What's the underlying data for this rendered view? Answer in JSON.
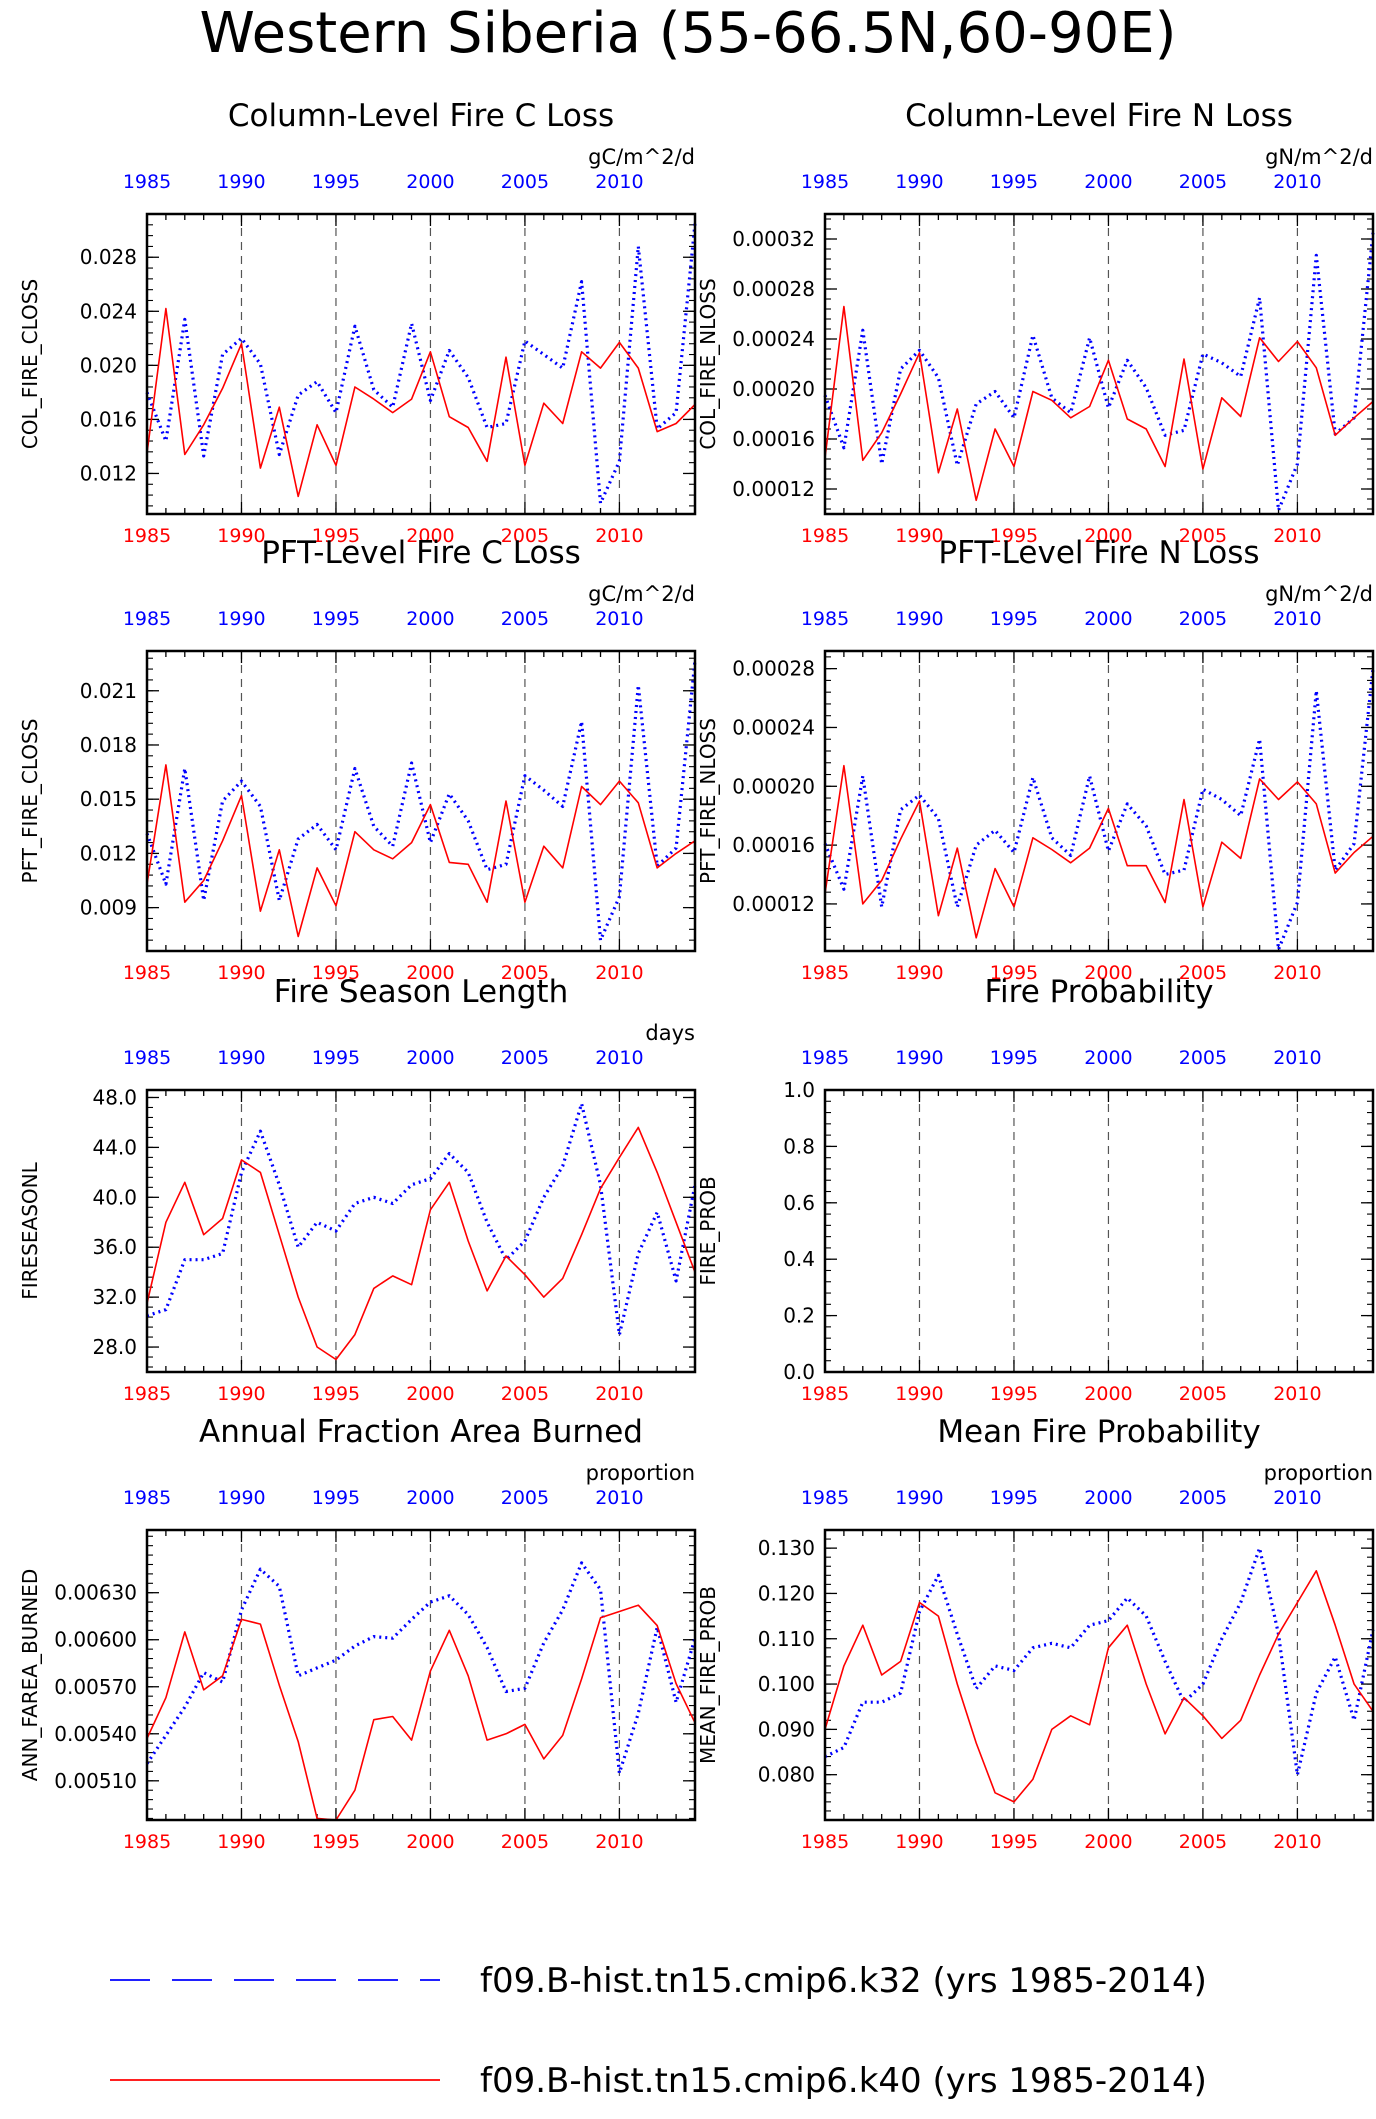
{
  "figure_title": "Western Siberia (55-66.5N,60-90E)",
  "colors": {
    "series_k32": "#0000ff",
    "series_k40": "#ff0000",
    "axis": "#000000",
    "gridline": "#555555"
  },
  "legend": {
    "entries": [
      {
        "label": "f09.B-hist.tn15.cmip6.k32 (yrs 1985-2014)",
        "color": "#0000ff",
        "style": "dashed"
      },
      {
        "label": "f09.B-hist.tn15.cmip6.k40 (yrs 1985-2014)",
        "color": "#ff0000",
        "style": "solid"
      }
    ]
  },
  "chart_data": [
    {
      "type": "line",
      "title": "Column-Level Fire C Loss",
      "units": "gC/m^2/d",
      "ylabel": "COL_FIRE_CLOSS",
      "ylim": [
        0.009,
        0.0312
      ],
      "yticks": [
        "0.012",
        "0.016",
        "0.020",
        "0.024",
        "0.028"
      ],
      "x": [
        1985,
        1986,
        1987,
        1988,
        1989,
        1990,
        1991,
        1992,
        1993,
        1994,
        1995,
        1996,
        1997,
        1998,
        1999,
        2000,
        2001,
        2002,
        2003,
        2004,
        2005,
        2006,
        2007,
        2008,
        2009,
        2010,
        2011,
        2012,
        2013,
        2014
      ],
      "xticks": [
        "1985",
        "1990",
        "1995",
        "2000",
        "2005",
        "2010"
      ],
      "series": [
        {
          "name": "f09.B-hist.tn15.cmip6.k32",
          "values": [
            0.018,
            0.0144,
            0.0234,
            0.0133,
            0.0208,
            0.022,
            0.0201,
            0.0134,
            0.0178,
            0.0188,
            0.0165,
            0.0229,
            0.0182,
            0.0169,
            0.0231,
            0.0174,
            0.0211,
            0.0191,
            0.0154,
            0.0157,
            0.0218,
            0.0208,
            0.0198,
            0.0262,
            0.0098,
            0.0129,
            0.0288,
            0.0153,
            0.0165,
            0.0305
          ]
        },
        {
          "name": "f09.B-hist.tn15.cmip6.k40",
          "values": [
            0.0135,
            0.0242,
            0.0134,
            0.0156,
            0.0183,
            0.0216,
            0.0124,
            0.0169,
            0.0103,
            0.0156,
            0.0126,
            0.0184,
            0.0175,
            0.0165,
            0.0175,
            0.021,
            0.0162,
            0.0154,
            0.0129,
            0.0206,
            0.0126,
            0.0172,
            0.0157,
            0.021,
            0.0198,
            0.0217,
            0.0198,
            0.0151,
            0.0157,
            0.0171
          ]
        }
      ]
    },
    {
      "type": "line",
      "title": "Column-Level Fire N Loss",
      "units": "gN/m^2/d",
      "ylabel": "COL_FIRE_NLOSS",
      "ylim": [
        0.0001,
        0.00034
      ],
      "yticks": [
        "0.00012",
        "0.00016",
        "0.00020",
        "0.00024",
        "0.00028",
        "0.00032"
      ],
      "x": [
        1985,
        1986,
        1987,
        1988,
        1989,
        1990,
        1991,
        1992,
        1993,
        1994,
        1995,
        1996,
        1997,
        1998,
        1999,
        2000,
        2001,
        2002,
        2003,
        2004,
        2005,
        2006,
        2007,
        2008,
        2009,
        2010,
        2011,
        2012,
        2013,
        2014
      ],
      "xticks": [
        "1985",
        "1990",
        "1995",
        "2000",
        "2005",
        "2010"
      ],
      "series": [
        {
          "name": "f09.B-hist.tn15.cmip6.k32",
          "values": [
            0.000195,
            0.000153,
            0.000247,
            0.00014,
            0.000216,
            0.000231,
            0.000209,
            0.000139,
            0.000188,
            0.000198,
            0.000177,
            0.000243,
            0.000193,
            0.000181,
            0.000241,
            0.000185,
            0.000223,
            0.000201,
            0.000163,
            0.000167,
            0.000228,
            0.000221,
            0.00021,
            0.000273,
            0.000103,
            0.00014,
            0.000307,
            0.000164,
            0.000177,
            0.000325
          ]
        },
        {
          "name": "f09.B-hist.tn15.cmip6.k40",
          "values": [
            0.000145,
            0.000266,
            0.000143,
            0.000165,
            0.000196,
            0.000229,
            0.000133,
            0.000184,
            0.000111,
            0.000168,
            0.000138,
            0.000198,
            0.000191,
            0.000177,
            0.000186,
            0.000223,
            0.000176,
            0.000168,
            0.000138,
            0.000224,
            0.000136,
            0.000193,
            0.000178,
            0.000241,
            0.000222,
            0.000238,
            0.000217,
            0.000163,
            0.000177,
            0.00019
          ]
        }
      ]
    },
    {
      "type": "line",
      "title": "PFT-Level Fire C Loss",
      "units": "gC/m^2/d",
      "ylabel": "PFT_FIRE_CLOSS",
      "ylim": [
        0.0066,
        0.0232
      ],
      "yticks": [
        "0.009",
        "0.012",
        "0.015",
        "0.018",
        "0.021"
      ],
      "x": [
        1985,
        1986,
        1987,
        1988,
        1989,
        1990,
        1991,
        1992,
        1993,
        1994,
        1995,
        1996,
        1997,
        1998,
        1999,
        2000,
        2001,
        2002,
        2003,
        2004,
        2005,
        2006,
        2007,
        2008,
        2009,
        2010,
        2011,
        2012,
        2013,
        2014
      ],
      "xticks": [
        "1985",
        "1990",
        "1995",
        "2000",
        "2005",
        "2010"
      ],
      "series": [
        {
          "name": "f09.B-hist.tn15.cmip6.k32",
          "values": [
            0.0131,
            0.0103,
            0.0167,
            0.0094,
            0.0149,
            0.016,
            0.0146,
            0.0094,
            0.0128,
            0.0136,
            0.0122,
            0.0167,
            0.0135,
            0.0124,
            0.017,
            0.0126,
            0.0153,
            0.0138,
            0.0111,
            0.0114,
            0.0163,
            0.0155,
            0.0146,
            0.0193,
            0.0072,
            0.0096,
            0.0213,
            0.0113,
            0.0123,
            0.0227
          ]
        },
        {
          "name": "f09.B-hist.tn15.cmip6.k40",
          "values": [
            0.0103,
            0.0169,
            0.0093,
            0.0105,
            0.0127,
            0.0152,
            0.0088,
            0.0122,
            0.0074,
            0.0112,
            0.0091,
            0.0132,
            0.0122,
            0.0117,
            0.0126,
            0.0147,
            0.0115,
            0.0114,
            0.0093,
            0.0149,
            0.0093,
            0.0124,
            0.0112,
            0.0157,
            0.0147,
            0.016,
            0.0148,
            0.0112,
            0.012,
            0.0127
          ]
        }
      ]
    },
    {
      "type": "line",
      "title": "PFT-Level Fire N Loss",
      "units": "gN/m^2/d",
      "ylabel": "PFT_FIRE_NLOSS",
      "ylim": [
        8.8e-05,
        0.000292
      ],
      "yticks": [
        "0.00012",
        "0.00016",
        "0.00020",
        "0.00024",
        "0.00028"
      ],
      "x": [
        1985,
        1986,
        1987,
        1988,
        1989,
        1990,
        1991,
        1992,
        1993,
        1994,
        1995,
        1996,
        1997,
        1998,
        1999,
        2000,
        2001,
        2002,
        2003,
        2004,
        2005,
        2006,
        2007,
        2008,
        2009,
        2010,
        2011,
        2012,
        2013,
        2014
      ],
      "xticks": [
        "1985",
        "1990",
        "1995",
        "2000",
        "2005",
        "2010"
      ],
      "series": [
        {
          "name": "f09.B-hist.tn15.cmip6.k32",
          "values": [
            0.000161,
            0.00013,
            0.000207,
            0.000118,
            0.000184,
            0.000194,
            0.000178,
            0.000118,
            0.00016,
            0.00017,
            0.000155,
            0.000206,
            0.000165,
            0.000153,
            0.000207,
            0.000156,
            0.000188,
            0.000173,
            0.00014,
            0.000143,
            0.000198,
            0.000191,
            0.00018,
            0.000232,
            8.9e-05,
            0.000121,
            0.000265,
            0.000143,
            0.000161,
            0.00028
          ]
        },
        {
          "name": "f09.B-hist.tn15.cmip6.k40",
          "values": [
            0.000127,
            0.000214,
            0.00012,
            0.000136,
            0.000164,
            0.00019,
            0.000112,
            0.000158,
            9.7e-05,
            0.000144,
            0.000118,
            0.000165,
            0.000157,
            0.000148,
            0.000158,
            0.000185,
            0.000146,
            0.000146,
            0.000121,
            0.000191,
            0.000118,
            0.000162,
            0.000151,
            0.000205,
            0.000191,
            0.000203,
            0.000188,
            0.000141,
            0.000155,
            0.000166
          ]
        }
      ]
    },
    {
      "type": "line",
      "title": "Fire Season Length",
      "units": "days",
      "ylabel": "FIRESEASONL",
      "ylim": [
        26,
        48.6
      ],
      "yticks": [
        "28.0",
        "32.0",
        "36.0",
        "40.0",
        "44.0",
        "48.0"
      ],
      "x": [
        1985,
        1986,
        1987,
        1988,
        1989,
        1990,
        1991,
        1992,
        1993,
        1994,
        1995,
        1996,
        1997,
        1998,
        1999,
        2000,
        2001,
        2002,
        2003,
        2004,
        2005,
        2006,
        2007,
        2008,
        2009,
        2010,
        2011,
        2012,
        2013,
        2014
      ],
      "xticks": [
        "1985",
        "1990",
        "1995",
        "2000",
        "2005",
        "2010"
      ],
      "series": [
        {
          "name": "f09.B-hist.tn15.cmip6.k32",
          "values": [
            30.5,
            31,
            35,
            35,
            35.5,
            42,
            45.3,
            41,
            36,
            38,
            37.3,
            39.5,
            40,
            39.5,
            41,
            41.5,
            43.5,
            42,
            38,
            35,
            36.5,
            40,
            42.5,
            47.5,
            41,
            29,
            35.5,
            38.8,
            33.3,
            41
          ]
        },
        {
          "name": "f09.B-hist.tn15.cmip6.k40",
          "values": [
            31.5,
            38,
            41.2,
            37,
            38.3,
            43,
            42,
            37,
            32,
            28,
            27,
            29,
            32.7,
            33.7,
            33,
            39,
            41.2,
            36.5,
            32.5,
            35.3,
            33.8,
            32,
            33.5,
            37,
            40.7,
            43.2,
            45.6,
            42,
            38,
            34
          ]
        }
      ]
    },
    {
      "type": "line",
      "title": "Fire Probability",
      "units": "",
      "ylabel": "FIRE_PROB",
      "ylim": [
        0,
        1
      ],
      "yticks": [
        "0.0",
        "0.2",
        "0.4",
        "0.6",
        "0.8",
        "1.0"
      ],
      "x": [
        1985,
        1986,
        1987,
        1988,
        1989,
        1990,
        1991,
        1992,
        1993,
        1994,
        1995,
        1996,
        1997,
        1998,
        1999,
        2000,
        2001,
        2002,
        2003,
        2004,
        2005,
        2006,
        2007,
        2008,
        2009,
        2010,
        2011,
        2012,
        2013,
        2014
      ],
      "xticks": [
        "1985",
        "1990",
        "1995",
        "2000",
        "2005",
        "2010"
      ],
      "series": []
    },
    {
      "type": "line",
      "title": "Annual Fraction Area Burned",
      "units": "proportion",
      "ylabel": "ANN_FAREA_BURNED",
      "ylim": [
        0.00485,
        0.0067
      ],
      "yticks": [
        "0.00510",
        "0.00540",
        "0.00570",
        "0.00600",
        "0.00630"
      ],
      "x": [
        1985,
        1986,
        1987,
        1988,
        1989,
        1990,
        1991,
        1992,
        1993,
        1994,
        1995,
        1996,
        1997,
        1998,
        1999,
        2000,
        2001,
        2002,
        2003,
        2004,
        2005,
        2006,
        2007,
        2008,
        2009,
        2010,
        2011,
        2012,
        2013,
        2014
      ],
      "xticks": [
        "1985",
        "1990",
        "1995",
        "2000",
        "2005",
        "2010"
      ],
      "series": [
        {
          "name": "f09.B-hist.tn15.cmip6.k32",
          "values": [
            0.00521,
            0.00539,
            0.00557,
            0.00579,
            0.00573,
            0.00619,
            0.00645,
            0.00634,
            0.00577,
            0.00582,
            0.00587,
            0.00596,
            0.00602,
            0.00601,
            0.00613,
            0.00624,
            0.00628,
            0.00616,
            0.00595,
            0.00567,
            0.00569,
            0.00598,
            0.00619,
            0.00649,
            0.00632,
            0.00515,
            0.00553,
            0.00608,
            0.0056,
            0.00601
          ]
        },
        {
          "name": "f09.B-hist.tn15.cmip6.k40",
          "values": [
            0.00537,
            0.00563,
            0.00605,
            0.00568,
            0.00577,
            0.00613,
            0.0061,
            0.00571,
            0.00535,
            0.00486,
            0.00485,
            0.00504,
            0.00549,
            0.00551,
            0.00536,
            0.0058,
            0.00606,
            0.00577,
            0.00536,
            0.0054,
            0.00546,
            0.00524,
            0.00539,
            0.00575,
            0.00614,
            0.00618,
            0.00622,
            0.00609,
            0.00572,
            0.00547
          ]
        }
      ]
    },
    {
      "type": "line",
      "title": "Mean Fire Probability",
      "units": "proportion",
      "ylabel": "MEAN_FIRE_PROB",
      "ylim": [
        0.07,
        0.134
      ],
      "yticks": [
        "0.080",
        "0.090",
        "0.100",
        "0.110",
        "0.120",
        "0.130"
      ],
      "x": [
        1985,
        1986,
        1987,
        1988,
        1989,
        1990,
        1991,
        1992,
        1993,
        1994,
        1995,
        1996,
        1997,
        1998,
        1999,
        2000,
        2001,
        2002,
        2003,
        2004,
        2005,
        2006,
        2007,
        2008,
        2009,
        2010,
        2011,
        2012,
        2013,
        2014
      ],
      "xticks": [
        "1985",
        "1990",
        "1995",
        "2000",
        "2005",
        "2010"
      ],
      "series": [
        {
          "name": "f09.B-hist.tn15.cmip6.k32",
          "values": [
            0.084,
            0.086,
            0.096,
            0.096,
            0.098,
            0.116,
            0.124,
            0.111,
            0.099,
            0.104,
            0.103,
            0.108,
            0.109,
            0.108,
            0.113,
            0.114,
            0.119,
            0.115,
            0.105,
            0.096,
            0.1,
            0.11,
            0.118,
            0.13,
            0.111,
            0.08,
            0.098,
            0.106,
            0.092,
            0.112
          ]
        },
        {
          "name": "f09.B-hist.tn15.cmip6.k40",
          "values": [
            0.09,
            0.104,
            0.113,
            0.102,
            0.105,
            0.118,
            0.115,
            0.1,
            0.087,
            0.076,
            0.074,
            0.079,
            0.09,
            0.093,
            0.091,
            0.108,
            0.113,
            0.1,
            0.089,
            0.097,
            0.093,
            0.088,
            0.092,
            0.102,
            0.111,
            0.118,
            0.125,
            0.113,
            0.1,
            0.094
          ]
        }
      ]
    }
  ]
}
